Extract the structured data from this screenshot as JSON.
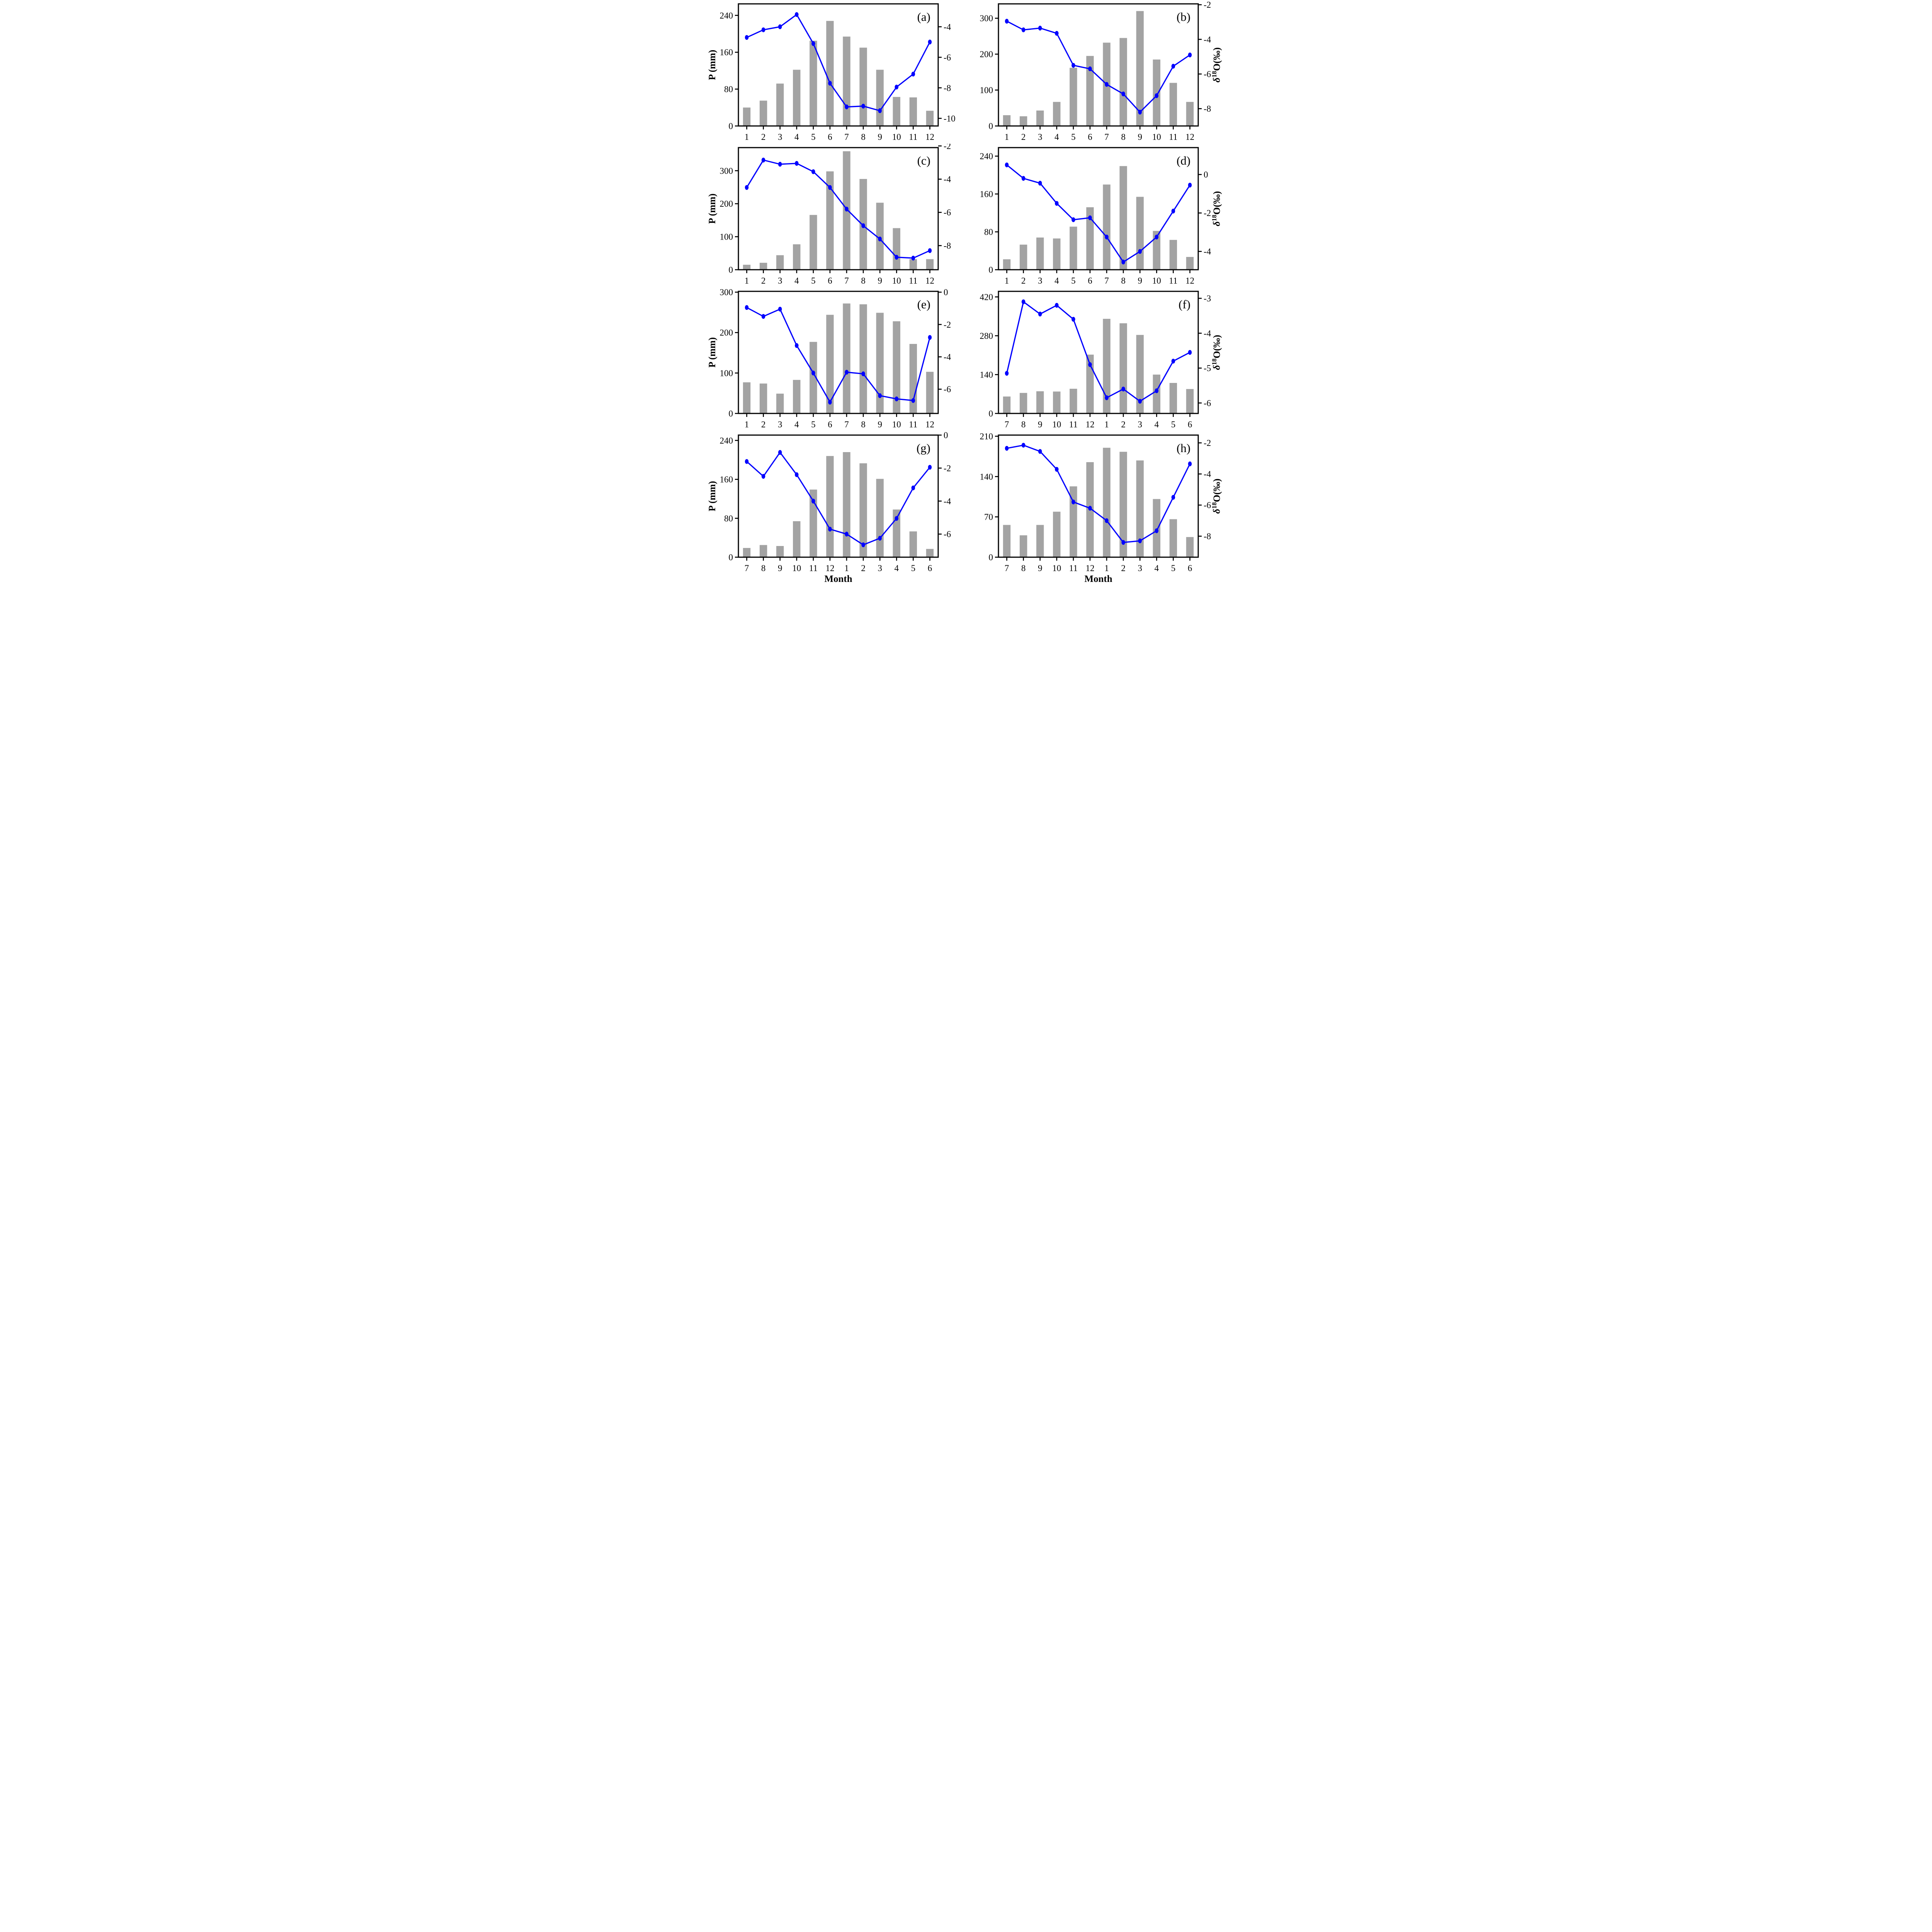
{
  "figure": {
    "background": "#ffffff",
    "bar_color": "#a3a3a3",
    "line_color": "#0000ff",
    "axis_color": "#000000",
    "left_axis_title": "P (mm)",
    "right_axis_title": "δ18O(‰)",
    "x_axis_title": "Month"
  },
  "chart_data": [
    {
      "type": "bar+line",
      "panel": "(a)",
      "categories": [
        "1",
        "2",
        "3",
        "4",
        "5",
        "6",
        "7",
        "8",
        "9",
        "10",
        "11",
        "12"
      ],
      "bars_P_mm": [
        40,
        55,
        92,
        122,
        185,
        228,
        194,
        170,
        122,
        63,
        62,
        33
      ],
      "line_d18O": [
        -4.7,
        -4.2,
        -4.0,
        -3.2,
        -5.1,
        -7.7,
        -9.25,
        -9.2,
        -9.5,
        -7.95,
        -7.1,
        -5.0
      ],
      "left_ticks": [
        0,
        80,
        160,
        240
      ],
      "left_max": 265,
      "right_ticks": [
        -4,
        -6,
        -8,
        -10
      ],
      "right_min": -10.5,
      "right_max": -2.5,
      "left_title": "P (mm)",
      "right_title": "",
      "x_title": ""
    },
    {
      "type": "bar+line",
      "panel": "(b)",
      "categories": [
        "1",
        "2",
        "3",
        "4",
        "5",
        "6",
        "7",
        "8",
        "9",
        "10",
        "11",
        "12"
      ],
      "bars_P_mm": [
        30,
        27,
        43,
        67,
        162,
        195,
        232,
        245,
        320,
        185,
        120,
        67
      ],
      "line_d18O": [
        -2.95,
        -3.45,
        -3.35,
        -3.65,
        -5.5,
        -5.7,
        -6.6,
        -7.15,
        -8.2,
        -7.25,
        -5.55,
        -4.9
      ],
      "left_ticks": [
        0,
        100,
        200,
        300
      ],
      "left_max": 340,
      "right_ticks": [
        -2,
        -4,
        -6,
        -8
      ],
      "right_min": -9.0,
      "right_max": -1.95,
      "left_title": "",
      "right_title": "δ18O(‰)",
      "x_title": ""
    },
    {
      "type": "bar+line",
      "panel": "(c)",
      "categories": [
        "1",
        "2",
        "3",
        "4",
        "5",
        "6",
        "7",
        "8",
        "9",
        "10",
        "11",
        "12"
      ],
      "bars_P_mm": [
        15,
        21,
        44,
        77,
        166,
        298,
        359,
        275,
        203,
        126,
        32,
        32
      ],
      "line_d18O": [
        -4.5,
        -2.85,
        -3.1,
        -3.05,
        -3.55,
        -4.5,
        -5.8,
        -6.8,
        -7.6,
        -8.7,
        -8.75,
        -8.3
      ],
      "left_ticks": [
        0,
        100,
        200,
        300
      ],
      "left_max": 370,
      "right_ticks": [
        -2,
        -4,
        -6,
        -8
      ],
      "right_min": -9.45,
      "right_max": -2.1,
      "left_title": "P (mm)",
      "right_title": "",
      "x_title": ""
    },
    {
      "type": "bar+line",
      "panel": "(d)",
      "categories": [
        "1",
        "2",
        "3",
        "4",
        "5",
        "6",
        "7",
        "8",
        "9",
        "10",
        "11",
        "12"
      ],
      "bars_P_mm": [
        22,
        53,
        68,
        66,
        91,
        132,
        180,
        219,
        154,
        82,
        63,
        27
      ],
      "line_d18O": [
        0.5,
        -0.2,
        -0.45,
        -1.5,
        -2.35,
        -2.25,
        -3.25,
        -4.55,
        -4.0,
        -3.25,
        -1.9,
        -0.55
      ],
      "left_ticks": [
        0,
        80,
        160,
        240
      ],
      "left_max": 258,
      "right_ticks": [
        0,
        -2,
        -4
      ],
      "right_min": -4.95,
      "right_max": 1.4,
      "left_title": "",
      "right_title": "δ18O(‰)",
      "x_title": ""
    },
    {
      "type": "bar+line",
      "panel": "(e)",
      "categories": [
        "1",
        "2",
        "3",
        "4",
        "5",
        "6",
        "7",
        "8",
        "9",
        "10",
        "11",
        "12"
      ],
      "bars_P_mm": [
        77,
        74,
        49,
        83,
        177,
        244,
        272,
        270,
        249,
        228,
        172,
        103
      ],
      "line_d18O": [
        -0.95,
        -1.5,
        -1.05,
        -3.3,
        -5.0,
        -6.8,
        -4.95,
        -5.05,
        -6.4,
        -6.6,
        -6.7,
        -2.8
      ],
      "left_ticks": [
        0,
        100,
        200,
        300
      ],
      "left_max": 302,
      "right_ticks": [
        0,
        -2,
        -4,
        -6
      ],
      "right_min": -7.5,
      "right_max": 0.05,
      "left_title": "P (mm)",
      "right_title": "",
      "x_title": ""
    },
    {
      "type": "bar+line",
      "panel": "(f)",
      "categories": [
        "7",
        "8",
        "9",
        "10",
        "11",
        "12",
        "1",
        "2",
        "3",
        "4",
        "5",
        "6"
      ],
      "bars_P_mm": [
        61,
        74,
        80,
        79,
        89,
        212,
        341,
        325,
        283,
        140,
        110,
        88
      ],
      "line_d18O": [
        -5.15,
        -3.1,
        -3.45,
        -3.2,
        -3.6,
        -4.9,
        -5.85,
        -5.6,
        -5.95,
        -5.65,
        -4.8,
        -4.55
      ],
      "left_ticks": [
        0,
        140,
        280,
        420
      ],
      "left_max": 440,
      "right_ticks": [
        -3,
        -4,
        -5,
        -6
      ],
      "right_min": -6.3,
      "right_max": -2.8,
      "left_title": "",
      "right_title": "δ18O(‰)",
      "x_title": ""
    },
    {
      "type": "bar+line",
      "panel": "(g)",
      "categories": [
        "7",
        "8",
        "9",
        "10",
        "11",
        "12",
        "1",
        "2",
        "3",
        "4",
        "5",
        "6"
      ],
      "bars_P_mm": [
        19,
        25,
        23,
        74,
        139,
        208,
        216,
        193,
        161,
        98,
        53,
        17
      ],
      "line_d18O": [
        -1.6,
        -2.5,
        -1.05,
        -2.4,
        -4.0,
        -5.7,
        -6.0,
        -6.65,
        -6.25,
        -5.05,
        -3.2,
        -1.95
      ],
      "left_ticks": [
        0,
        80,
        160,
        240
      ],
      "left_max": 251,
      "right_ticks": [
        0,
        -2,
        -4,
        -6
      ],
      "right_min": -7.4,
      "right_max": 0.0,
      "left_title": "P (mm)",
      "right_title": "",
      "x_title": "Month"
    },
    {
      "type": "bar+line",
      "panel": "(h)",
      "categories": [
        "7",
        "8",
        "9",
        "10",
        "11",
        "12",
        "1",
        "2",
        "3",
        "4",
        "5",
        "6"
      ],
      "bars_P_mm": [
        56,
        38,
        56,
        79,
        123,
        165,
        190,
        183,
        168,
        101,
        66,
        35
      ],
      "line_d18O": [
        -2.35,
        -2.15,
        -2.55,
        -3.7,
        -5.8,
        -6.2,
        -7.0,
        -8.4,
        -8.3,
        -7.65,
        -5.5,
        -3.35
      ],
      "left_ticks": [
        0,
        70,
        140,
        210
      ],
      "left_max": 212,
      "right_ticks": [
        -2,
        -4,
        -6,
        -8
      ],
      "right_min": -9.35,
      "right_max": -1.5,
      "left_title": "",
      "right_title": "δ18O(‰)",
      "x_title": "Month"
    }
  ]
}
